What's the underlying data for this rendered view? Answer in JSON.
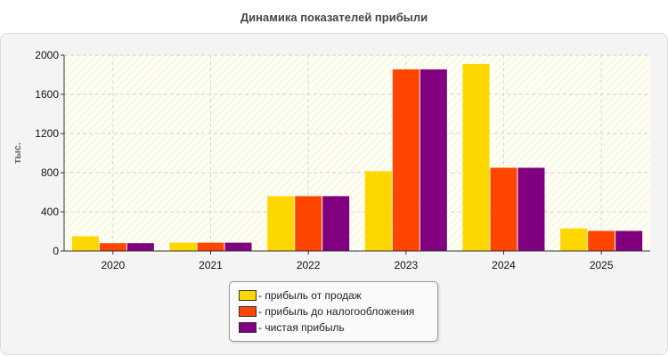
{
  "chart_data": {
    "type": "bar",
    "title": "Динамика показателей прибыли",
    "ylabel": "тыс.",
    "xlabel": "",
    "categories": [
      "2020",
      "2021",
      "2022",
      "2023",
      "2024",
      "2025"
    ],
    "ylim": [
      0,
      2000
    ],
    "yticks": [
      0,
      400,
      800,
      1200,
      1600,
      2000
    ],
    "grid": true,
    "legend_position": "bottom",
    "series": [
      {
        "name": "- прибыль от продаж",
        "color": "#FFD700",
        "values": [
          150,
          85,
          560,
          815,
          1910,
          230
        ]
      },
      {
        "name": "- прибыль до налогообложения",
        "color": "#FF4500",
        "values": [
          80,
          85,
          560,
          1855,
          850,
          205
        ]
      },
      {
        "name": "- чистая прибыль",
        "color": "#800080",
        "values": [
          80,
          85,
          560,
          1855,
          850,
          205
        ]
      }
    ]
  }
}
